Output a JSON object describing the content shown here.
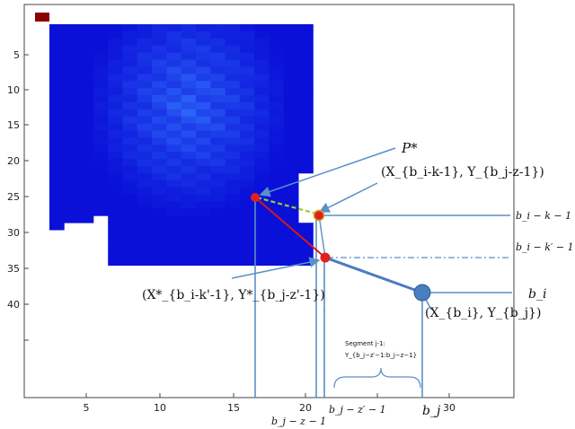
{
  "axes": {
    "x_ticks": [
      "5",
      "10",
      "15",
      "20",
      "30"
    ],
    "y_ticks": [
      "5",
      "10",
      "15",
      "20",
      "25",
      "30",
      "35",
      "40"
    ]
  },
  "heatmap": {
    "colormap": [
      "#0a10d8",
      "#2f6bff"
    ],
    "marker_color": "#8b0000"
  },
  "colors": {
    "path": "#d41a1a",
    "guide": "#5b8fc7",
    "dashed_connector": "#9acd32",
    "big_point": "#4a7cc0"
  },
  "labels": {
    "p_star": "P*",
    "point_upper": "(X_{b_i-k-1}, Y_{b_j-z-1})",
    "point_lower": "(X*_{b_i-k'-1}, Y*_{b_j-z'-1})",
    "point_big": "(X_{b_i}, Y_{b_j})",
    "right_1": "b_i − k − 1",
    "right_2": "b_i − k′ − 1",
    "right_3": "b_i",
    "bottom_1": "b_j − z − 1",
    "bottom_2": "b_j − z′ − 1",
    "bottom_3": "b_j",
    "segment_title": "Segment j-1:",
    "segment_sub": "Y_{b_j−z′−1:b_j−z−1}"
  }
}
